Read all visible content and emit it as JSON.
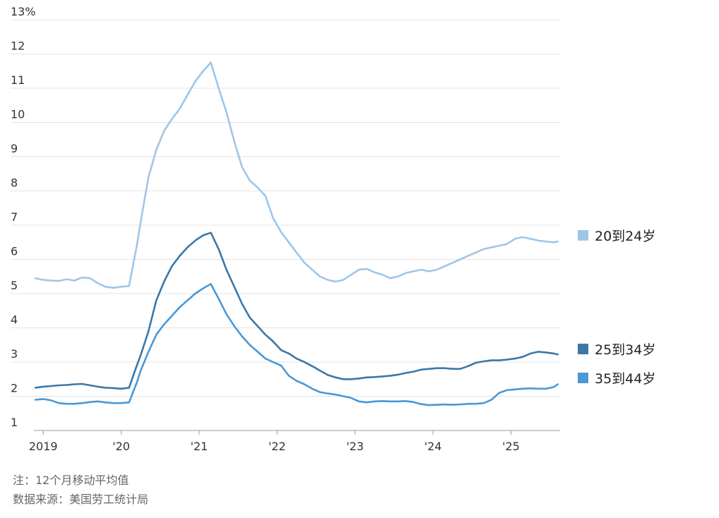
{
  "chart_data": {
    "type": "line",
    "title": "",
    "xlabel": "",
    "ylabel": "",
    "ylim": [
      1,
      13
    ],
    "xlim": [
      2018.88,
      2025.63
    ],
    "y_ticks": [
      {
        "value": 13,
        "label": "13%"
      },
      {
        "value": 12,
        "label": "12"
      },
      {
        "value": 11,
        "label": "11"
      },
      {
        "value": 10,
        "label": "10"
      },
      {
        "value": 9,
        "label": "9"
      },
      {
        "value": 8,
        "label": "8"
      },
      {
        "value": 7,
        "label": "7"
      },
      {
        "value": 6,
        "label": "6"
      },
      {
        "value": 5,
        "label": "5"
      },
      {
        "value": 4,
        "label": "4"
      },
      {
        "value": 3,
        "label": "3"
      },
      {
        "value": 2,
        "label": "2"
      },
      {
        "value": 1,
        "label": "1"
      }
    ],
    "x_ticks": [
      {
        "value": 2019.0,
        "label": "2019"
      },
      {
        "value": 2020.0,
        "label": "'20"
      },
      {
        "value": 2021.0,
        "label": "'21"
      },
      {
        "value": 2022.0,
        "label": "'22"
      },
      {
        "value": 2023.0,
        "label": "'23"
      },
      {
        "value": 2024.0,
        "label": "'24"
      },
      {
        "value": 2025.0,
        "label": "'25"
      }
    ],
    "grid": true,
    "legend": "right",
    "series": [
      {
        "name": "20到24岁",
        "color": "#9fc6e8",
        "x": [
          2018.9,
          2019.0,
          2019.1,
          2019.2,
          2019.3,
          2019.4,
          2019.5,
          2019.6,
          2019.7,
          2019.8,
          2019.9,
          2020.0,
          2020.1,
          2020.2,
          2020.25,
          2020.35,
          2020.45,
          2020.55,
          2020.65,
          2020.75,
          2020.85,
          2020.95,
          2021.05,
          2021.15,
          2021.25,
          2021.35,
          2021.45,
          2021.55,
          2021.65,
          2021.75,
          2021.85,
          2021.95,
          2022.05,
          2022.15,
          2022.25,
          2022.35,
          2022.45,
          2022.55,
          2022.65,
          2022.75,
          2022.85,
          2022.95,
          2023.05,
          2023.15,
          2023.25,
          2023.35,
          2023.45,
          2023.55,
          2023.65,
          2023.75,
          2023.85,
          2023.95,
          2024.05,
          2024.15,
          2024.25,
          2024.35,
          2024.45,
          2024.55,
          2024.65,
          2024.75,
          2024.85,
          2024.95,
          2025.05,
          2025.15,
          2025.25,
          2025.35,
          2025.45,
          2025.55,
          2025.6
        ],
        "y": [
          5.45,
          5.4,
          5.38,
          5.37,
          5.42,
          5.38,
          5.47,
          5.45,
          5.3,
          5.2,
          5.17,
          5.2,
          5.22,
          6.4,
          7.1,
          8.4,
          9.2,
          9.75,
          10.1,
          10.4,
          10.8,
          11.2,
          11.5,
          11.75,
          11.0,
          10.3,
          9.45,
          8.7,
          8.3,
          8.1,
          7.85,
          7.2,
          6.8,
          6.5,
          6.2,
          5.9,
          5.7,
          5.5,
          5.4,
          5.35,
          5.4,
          5.55,
          5.7,
          5.72,
          5.62,
          5.55,
          5.45,
          5.5,
          5.6,
          5.65,
          5.7,
          5.65,
          5.7,
          5.8,
          5.9,
          6.0,
          6.1,
          6.2,
          6.3,
          6.35,
          6.4,
          6.45,
          6.6,
          6.65,
          6.6,
          6.55,
          6.52,
          6.5,
          6.52
        ]
      },
      {
        "name": "25到34岁",
        "color": "#3b78a8",
        "x": [
          2018.9,
          2019.0,
          2019.1,
          2019.2,
          2019.3,
          2019.4,
          2019.5,
          2019.6,
          2019.7,
          2019.8,
          2019.9,
          2020.0,
          2020.1,
          2020.2,
          2020.25,
          2020.35,
          2020.45,
          2020.55,
          2020.65,
          2020.75,
          2020.85,
          2020.95,
          2021.05,
          2021.15,
          2021.25,
          2021.35,
          2021.45,
          2021.55,
          2021.65,
          2021.75,
          2021.85,
          2021.95,
          2022.05,
          2022.15,
          2022.25,
          2022.35,
          2022.45,
          2022.55,
          2022.65,
          2022.75,
          2022.85,
          2022.95,
          2023.05,
          2023.15,
          2023.25,
          2023.35,
          2023.45,
          2023.55,
          2023.65,
          2023.75,
          2023.85,
          2023.95,
          2024.05,
          2024.15,
          2024.25,
          2024.35,
          2024.45,
          2024.55,
          2024.65,
          2024.75,
          2024.85,
          2024.95,
          2025.05,
          2025.15,
          2025.25,
          2025.35,
          2025.45,
          2025.55,
          2025.6
        ],
        "y": [
          2.25,
          2.28,
          2.3,
          2.32,
          2.33,
          2.35,
          2.36,
          2.32,
          2.28,
          2.25,
          2.24,
          2.22,
          2.25,
          2.9,
          3.2,
          3.9,
          4.8,
          5.35,
          5.8,
          6.1,
          6.35,
          6.55,
          6.7,
          6.78,
          6.3,
          5.7,
          5.2,
          4.7,
          4.3,
          4.05,
          3.8,
          3.6,
          3.35,
          3.25,
          3.1,
          3.0,
          2.88,
          2.75,
          2.62,
          2.55,
          2.5,
          2.5,
          2.52,
          2.55,
          2.56,
          2.58,
          2.6,
          2.63,
          2.68,
          2.72,
          2.78,
          2.8,
          2.82,
          2.82,
          2.8,
          2.8,
          2.88,
          2.98,
          3.02,
          3.05,
          3.05,
          3.07,
          3.1,
          3.15,
          3.25,
          3.3,
          3.28,
          3.25,
          3.22
        ]
      },
      {
        "name": "35到44岁",
        "color": "#4a98d6",
        "x": [
          2018.9,
          2019.0,
          2019.1,
          2019.2,
          2019.3,
          2019.4,
          2019.5,
          2019.6,
          2019.7,
          2019.8,
          2019.9,
          2020.0,
          2020.1,
          2020.2,
          2020.25,
          2020.35,
          2020.45,
          2020.55,
          2020.65,
          2020.75,
          2020.85,
          2020.95,
          2021.05,
          2021.15,
          2021.25,
          2021.35,
          2021.45,
          2021.55,
          2021.65,
          2021.75,
          2021.85,
          2021.95,
          2022.05,
          2022.15,
          2022.25,
          2022.35,
          2022.45,
          2022.55,
          2022.65,
          2022.75,
          2022.85,
          2022.95,
          2023.05,
          2023.15,
          2023.25,
          2023.35,
          2023.45,
          2023.55,
          2023.65,
          2023.75,
          2023.85,
          2023.95,
          2024.05,
          2024.15,
          2024.25,
          2024.35,
          2024.45,
          2024.55,
          2024.65,
          2024.75,
          2024.85,
          2024.95,
          2025.05,
          2025.15,
          2025.25,
          2025.35,
          2025.45,
          2025.55,
          2025.6
        ],
        "y": [
          1.9,
          1.92,
          1.88,
          1.8,
          1.78,
          1.78,
          1.8,
          1.83,
          1.85,
          1.82,
          1.8,
          1.8,
          1.82,
          2.4,
          2.75,
          3.3,
          3.8,
          4.1,
          4.35,
          4.6,
          4.8,
          5.0,
          5.15,
          5.28,
          4.85,
          4.4,
          4.05,
          3.75,
          3.5,
          3.3,
          3.1,
          3.0,
          2.9,
          2.6,
          2.45,
          2.35,
          2.22,
          2.12,
          2.08,
          2.05,
          2.0,
          1.95,
          1.85,
          1.82,
          1.85,
          1.86,
          1.85,
          1.85,
          1.86,
          1.83,
          1.77,
          1.74,
          1.75,
          1.76,
          1.75,
          1.76,
          1.78,
          1.78,
          1.8,
          1.9,
          2.1,
          2.18,
          2.2,
          2.22,
          2.23,
          2.22,
          2.22,
          2.27,
          2.35
        ]
      }
    ]
  },
  "footnotes": {
    "note": "注：12个月移动平均值",
    "source": "数据来源：美国劳工统计局"
  }
}
